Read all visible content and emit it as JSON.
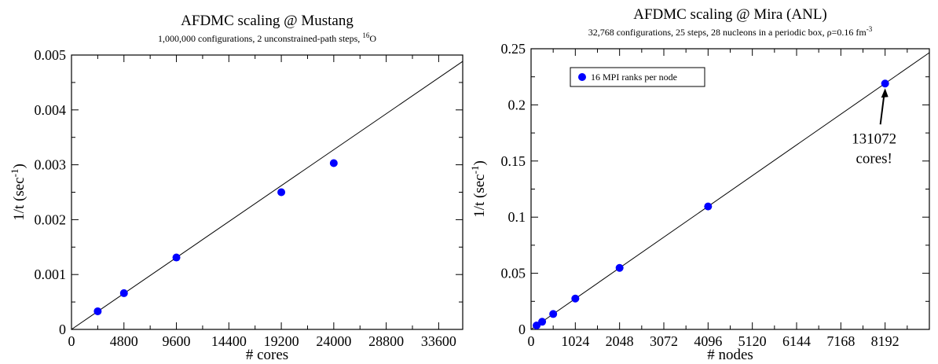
{
  "chart_data": [
    {
      "type": "scatter",
      "title": "AFDMC scaling @ Mustang",
      "subtitle": "1,000,000 configurations, 2 unconstrained-path steps, ",
      "subtitle_iso_sup": "16",
      "subtitle_iso_el": "O",
      "xlabel": "# cores",
      "ylabel": "1/t (sec",
      "ylabel_sup": "-1",
      "ylabel_close": ")",
      "xlim": [
        0,
        35800
      ],
      "ylim": [
        0,
        0.005
      ],
      "xticks": [
        0,
        4800,
        9600,
        14400,
        19200,
        24000,
        28800,
        33600
      ],
      "xtick_labels": [
        "0",
        "4800",
        "9600",
        "14400",
        "19200",
        "24000",
        "28800",
        "33600"
      ],
      "yticks": [
        0,
        0.001,
        0.002,
        0.003,
        0.004,
        0.005
      ],
      "ytick_labels": [
        "0",
        "0.001",
        "0.002",
        "0.003",
        "0.004",
        "0.005"
      ],
      "series": [
        {
          "x": [
            2400,
            4800,
            9600,
            19200,
            24000
          ],
          "y": [
            0.00033,
            0.00066,
            0.00131,
            0.0025,
            0.00303
          ]
        }
      ],
      "fit_line": {
        "x": [
          0,
          35800
        ],
        "y": [
          0,
          0.004885
        ]
      },
      "marker_color": "#0000ff"
    },
    {
      "type": "scatter",
      "title": "AFDMC scaling @ Mira (ANL)",
      "subtitle": "32,768 configurations, 25 steps, 28 nucleons in a periodic box, ρ=0.16 fm",
      "subtitle_sup": "-3",
      "xlabel": "# nodes",
      "ylabel": "1/t (sec",
      "ylabel_sup": "-1",
      "ylabel_close": ")",
      "xlim": [
        0,
        9216
      ],
      "ylim": [
        0,
        0.25
      ],
      "xticks": [
        0,
        1024,
        2048,
        3072,
        4096,
        5120,
        6144,
        7168,
        8192
      ],
      "xtick_labels": [
        "0",
        "1024",
        "2048",
        "3072",
        "4096",
        "5120",
        "6144",
        "7168",
        "8192"
      ],
      "yticks": [
        0,
        0.05,
        0.1,
        0.15,
        0.2,
        0.25
      ],
      "ytick_labels": [
        "0",
        "0.05",
        "0.1",
        "0.15",
        "0.2",
        "0.25"
      ],
      "series": [
        {
          "name": "16 MPI ranks per node",
          "x": [
            128,
            256,
            512,
            1024,
            2048,
            4096,
            8192
          ],
          "y": [
            0.0035,
            0.0068,
            0.0137,
            0.0275,
            0.0548,
            0.1095,
            0.219
          ]
        }
      ],
      "fit_line": {
        "x": [
          0,
          9216
        ],
        "y": [
          0,
          0.2465
        ]
      },
      "legend_position": "top-left",
      "annotation": {
        "lines": [
          "131072",
          "cores!"
        ],
        "x": 8192,
        "y": 0.219
      },
      "marker_color": "#0000ff"
    }
  ]
}
